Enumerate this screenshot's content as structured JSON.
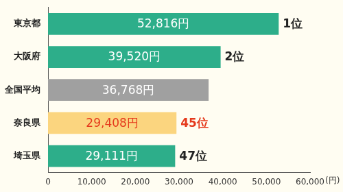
{
  "chart_data": {
    "type": "bar",
    "orientation": "horizontal",
    "categories": [
      "東京都",
      "大阪府",
      "全国平均",
      "奈良県",
      "埼玉県"
    ],
    "values": [
      52816,
      39520,
      36768,
      29408,
      29111
    ],
    "value_labels": [
      "52,816円",
      "39,520円",
      "36,768円",
      "29,408円",
      "29,111円"
    ],
    "ranks": [
      "1位",
      "2位",
      null,
      "45位",
      "47位"
    ],
    "colors": [
      "#2dae8a",
      "#2dae8a",
      "#a0a0a0",
      "#fbd57f",
      "#2dae8a"
    ],
    "xlim": [
      0,
      60000
    ],
    "xticks": [
      0,
      {
        "value": 10000,
        "label": "10,000"
      },
      {
        "value": 20000,
        "label": "20,000"
      },
      {
        "value": 30000,
        "label": "30,000"
      },
      {
        "value": 40000,
        "label": "40,000"
      },
      {
        "value": 50000,
        "label": "50,000"
      },
      {
        "value": 60000,
        "label": "60,000"
      }
    ],
    "x_label": "(円)",
    "grid": false,
    "data_labels": true
  }
}
